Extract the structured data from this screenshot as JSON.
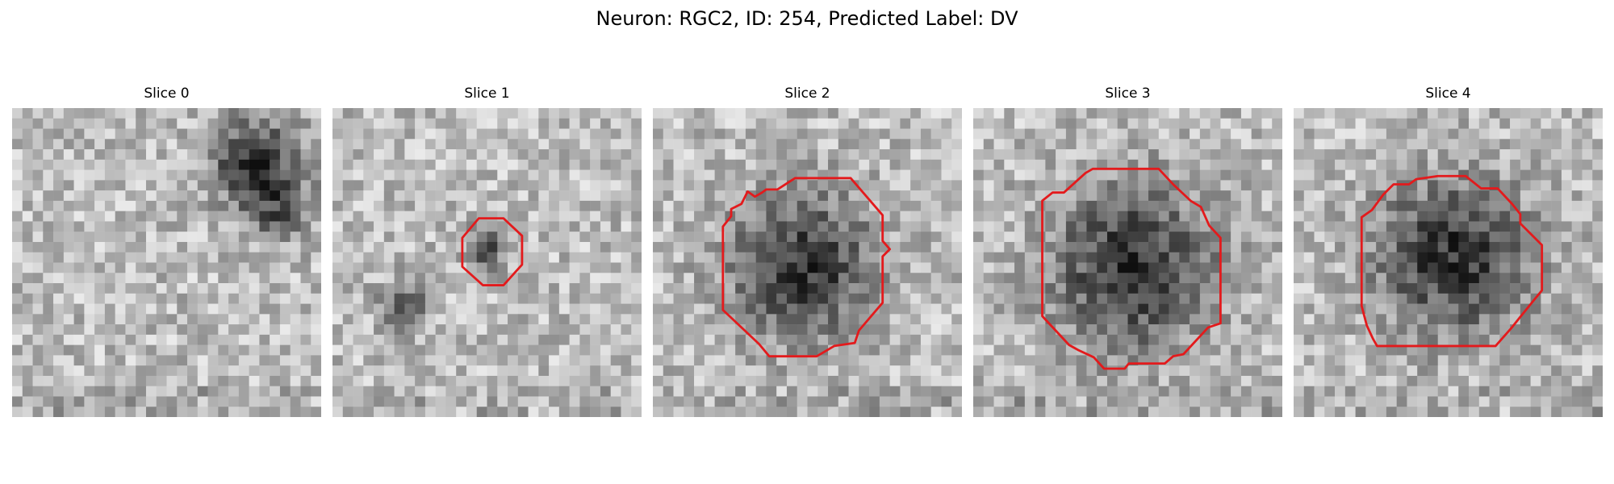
{
  "figure": {
    "title": "Neuron: RGC2, ID: 254, Predicted Label: DV",
    "outline_color": "#e31a1c",
    "colormap": "grayscale"
  },
  "panels": [
    {
      "title": "Slice 0",
      "has_outline": false
    },
    {
      "title": "Slice 1",
      "has_outline": true
    },
    {
      "title": "Slice 2",
      "has_outline": true
    },
    {
      "title": "Slice 3",
      "has_outline": true
    },
    {
      "title": "Slice 4",
      "has_outline": true
    }
  ]
}
